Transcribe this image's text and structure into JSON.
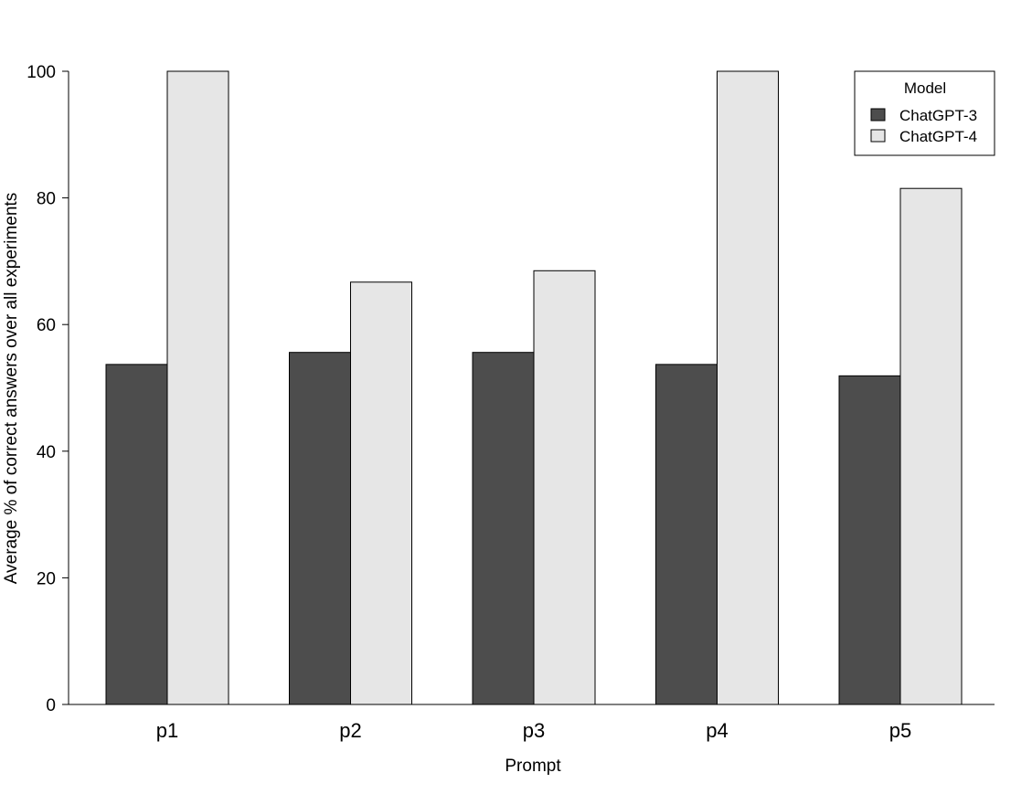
{
  "chart_data": {
    "type": "bar",
    "title": "",
    "xlabel": "Prompt",
    "ylabel": "Average % of correct answers over all experiments",
    "categories": [
      "p1",
      "p2",
      "p3",
      "p4",
      "p5"
    ],
    "series": [
      {
        "name": "ChatGPT-3",
        "color": "#4d4d4d",
        "values": [
          53.7,
          55.6,
          55.6,
          53.7,
          51.9
        ]
      },
      {
        "name": "ChatGPT-4",
        "color": "#e6e6e6",
        "values": [
          100,
          66.7,
          68.5,
          100,
          81.5
        ]
      }
    ],
    "ylim": [
      0,
      100
    ],
    "yticks": [
      "0",
      "20",
      "40",
      "60",
      "80",
      "100"
    ],
    "grid": false,
    "legend": {
      "title": "Model",
      "position": "top-right"
    }
  }
}
